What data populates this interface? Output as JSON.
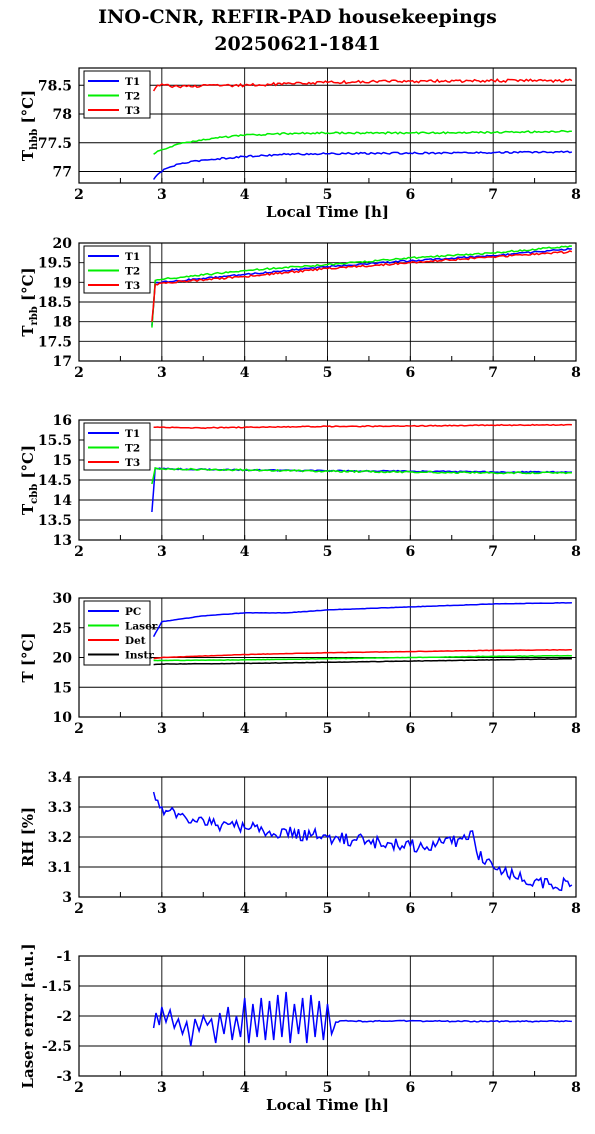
{
  "title": {
    "line1": "INO-CNR, REFIR-PAD housekeepings",
    "line2": "20250621-1841"
  },
  "colors": {
    "blue": "#0000ff",
    "green": "#00ee00",
    "red": "#ff0000",
    "black": "#000000"
  },
  "chart_data": [
    {
      "type": "line",
      "ylabel_main": "T",
      "ylabel_sub": "hbb",
      "ylabel_unit": "[°C]",
      "xlabel": "Local Time [h]",
      "xlim": [
        2,
        8
      ],
      "ylim": [
        76.8,
        78.8
      ],
      "xticks": [
        "2",
        "3",
        "4",
        "5",
        "6",
        "7",
        "8"
      ],
      "yticks": [
        {
          "v": 77,
          "label": "77"
        },
        {
          "v": 77.5,
          "label": "77.5"
        },
        {
          "v": 78,
          "label": "78"
        },
        {
          "v": 78.5,
          "label": "78.5"
        }
      ],
      "grid": true,
      "legend_position": "top-left",
      "series": [
        {
          "name": "T1",
          "color": "#0000ff",
          "noise": 0.015,
          "points": [
            [
              2.9,
              76.86
            ],
            [
              2.95,
              76.95
            ],
            [
              3.05,
              77.05
            ],
            [
              3.2,
              77.13
            ],
            [
              3.5,
              77.2
            ],
            [
              4.0,
              77.26
            ],
            [
              4.5,
              77.3
            ],
            [
              5.0,
              77.31
            ],
            [
              6.0,
              77.32
            ],
            [
              7.0,
              77.33
            ],
            [
              7.95,
              77.34
            ]
          ]
        },
        {
          "name": "T2",
          "color": "#00ee00",
          "noise": 0.015,
          "points": [
            [
              2.9,
              77.3
            ],
            [
              3.0,
              77.38
            ],
            [
              3.2,
              77.48
            ],
            [
              3.5,
              77.56
            ],
            [
              4.0,
              77.63
            ],
            [
              4.5,
              77.66
            ],
            [
              5.0,
              77.67
            ],
            [
              6.0,
              77.67
            ],
            [
              7.0,
              77.68
            ],
            [
              7.95,
              77.7
            ]
          ]
        },
        {
          "name": "T3",
          "color": "#ff0000",
          "noise": 0.025,
          "points": [
            [
              2.9,
              78.4
            ],
            [
              2.95,
              78.5
            ],
            [
              3.3,
              78.48
            ],
            [
              4.0,
              78.5
            ],
            [
              5.0,
              78.55
            ],
            [
              6.0,
              78.57
            ],
            [
              7.0,
              78.58
            ],
            [
              7.95,
              78.58
            ]
          ]
        }
      ]
    },
    {
      "type": "line",
      "ylabel_main": "T",
      "ylabel_sub": "rbb",
      "ylabel_unit": "[°C]",
      "xlabel": "",
      "xlim": [
        2,
        8
      ],
      "ylim": [
        17,
        20
      ],
      "xticks": [
        "2",
        "3",
        "4",
        "5",
        "6",
        "7",
        "8"
      ],
      "yticks": [
        {
          "v": 17,
          "label": "17"
        },
        {
          "v": 17.5,
          "label": "17.5"
        },
        {
          "v": 18,
          "label": "18"
        },
        {
          "v": 18.5,
          "label": "18.5"
        },
        {
          "v": 19,
          "label": "19"
        },
        {
          "v": 19.5,
          "label": "19.5"
        },
        {
          "v": 20,
          "label": "20"
        }
      ],
      "grid": true,
      "legend_position": "top-left",
      "series": [
        {
          "name": "T1",
          "color": "#0000ff",
          "noise": 0.02,
          "points": [
            [
              2.88,
              17.9
            ],
            [
              2.92,
              19.0
            ],
            [
              3.0,
              19.0
            ],
            [
              4.0,
              19.2
            ],
            [
              5.0,
              19.4
            ],
            [
              6.0,
              19.55
            ],
            [
              7.0,
              19.68
            ],
            [
              7.95,
              19.85
            ]
          ]
        },
        {
          "name": "T2",
          "color": "#00ee00",
          "noise": 0.02,
          "points": [
            [
              2.88,
              17.85
            ],
            [
              2.92,
              19.05
            ],
            [
              3.0,
              19.08
            ],
            [
              4.0,
              19.3
            ],
            [
              5.0,
              19.45
            ],
            [
              6.0,
              19.62
            ],
            [
              7.0,
              19.75
            ],
            [
              7.95,
              19.92
            ]
          ]
        },
        {
          "name": "T3",
          "color": "#ff0000",
          "noise": 0.025,
          "points": [
            [
              2.88,
              18.0
            ],
            [
              2.92,
              18.95
            ],
            [
              3.0,
              18.98
            ],
            [
              4.0,
              19.15
            ],
            [
              5.0,
              19.35
            ],
            [
              6.0,
              19.5
            ],
            [
              7.0,
              19.65
            ],
            [
              7.95,
              19.78
            ]
          ]
        }
      ]
    },
    {
      "type": "line",
      "ylabel_main": "T",
      "ylabel_sub": "cbb",
      "ylabel_unit": "[°C]",
      "xlabel": "",
      "xlim": [
        2,
        8
      ],
      "ylim": [
        13,
        16
      ],
      "xticks": [
        "2",
        "3",
        "4",
        "5",
        "6",
        "7",
        "8"
      ],
      "yticks": [
        {
          "v": 13,
          "label": "13"
        },
        {
          "v": 13.5,
          "label": "13.5"
        },
        {
          "v": 14,
          "label": "14"
        },
        {
          "v": 14.5,
          "label": "14.5"
        },
        {
          "v": 15,
          "label": "15"
        },
        {
          "v": 15.5,
          "label": "15.5"
        },
        {
          "v": 16,
          "label": "16"
        }
      ],
      "grid": true,
      "legend_position": "top-left",
      "series": [
        {
          "name": "T1",
          "color": "#0000ff",
          "noise": 0.015,
          "points": [
            [
              2.88,
              13.7
            ],
            [
              2.92,
              14.8
            ],
            [
              3.0,
              14.78
            ],
            [
              4.0,
              14.75
            ],
            [
              5.0,
              14.73
            ],
            [
              6.0,
              14.72
            ],
            [
              7.0,
              14.7
            ],
            [
              7.95,
              14.7
            ]
          ]
        },
        {
          "name": "T2",
          "color": "#00ee00",
          "noise": 0.02,
          "points": [
            [
              2.88,
              14.4
            ],
            [
              2.92,
              14.8
            ],
            [
              3.0,
              14.78
            ],
            [
              4.0,
              14.75
            ],
            [
              5.0,
              14.72
            ],
            [
              6.0,
              14.7
            ],
            [
              7.0,
              14.68
            ],
            [
              7.95,
              14.68
            ]
          ]
        },
        {
          "name": "T3",
          "color": "#ff0000",
          "noise": 0.012,
          "points": [
            [
              2.9,
              15.82
            ],
            [
              3.5,
              15.8
            ],
            [
              4.0,
              15.82
            ],
            [
              5.0,
              15.84
            ],
            [
              6.0,
              15.85
            ],
            [
              7.0,
              15.87
            ],
            [
              7.95,
              15.88
            ]
          ]
        }
      ]
    },
    {
      "type": "line",
      "ylabel_main": "T [°C]",
      "ylabel_sub": "",
      "ylabel_unit": "",
      "xlabel": "",
      "xlim": [
        2,
        8
      ],
      "ylim": [
        10,
        30
      ],
      "xticks": [
        "2",
        "3",
        "4",
        "5",
        "6",
        "7",
        "8"
      ],
      "yticks": [
        {
          "v": 10,
          "label": "10"
        },
        {
          "v": 15,
          "label": "15"
        },
        {
          "v": 20,
          "label": "20"
        },
        {
          "v": 25,
          "label": "25"
        },
        {
          "v": 30,
          "label": "30"
        }
      ],
      "grid": true,
      "legend_position": "top-left",
      "series": [
        {
          "name": "PC",
          "color": "#0000ff",
          "noise": 0.03,
          "points": [
            [
              2.9,
              23.5
            ],
            [
              3.0,
              26.0
            ],
            [
              3.5,
              27.0
            ],
            [
              4.0,
              27.5
            ],
            [
              4.5,
              27.5
            ],
            [
              5.0,
              28.0
            ],
            [
              6.0,
              28.5
            ],
            [
              7.0,
              29.0
            ],
            [
              7.95,
              29.2
            ]
          ]
        },
        {
          "name": "Laser",
          "color": "#00ee00",
          "noise": 0.03,
          "points": [
            [
              2.9,
              19.5
            ],
            [
              3.0,
              19.5
            ],
            [
              4.0,
              19.6
            ],
            [
              5.0,
              19.8
            ],
            [
              6.0,
              20.0
            ],
            [
              7.0,
              20.2
            ],
            [
              7.95,
              20.3
            ]
          ]
        },
        {
          "name": "Det",
          "color": "#ff0000",
          "noise": 0.03,
          "points": [
            [
              2.9,
              19.8
            ],
            [
              3.0,
              20.0
            ],
            [
              4.0,
              20.5
            ],
            [
              5.0,
              20.8
            ],
            [
              6.0,
              21.0
            ],
            [
              7.0,
              21.2
            ],
            [
              7.95,
              21.3
            ]
          ]
        },
        {
          "name": "Instr",
          "color": "#000000",
          "noise": 0.03,
          "points": [
            [
              2.9,
              18.8
            ],
            [
              3.0,
              18.9
            ],
            [
              4.0,
              19.0
            ],
            [
              5.0,
              19.2
            ],
            [
              6.0,
              19.4
            ],
            [
              7.0,
              19.6
            ],
            [
              7.95,
              19.8
            ]
          ]
        }
      ]
    },
    {
      "type": "line",
      "ylabel_main": "RH [%]",
      "ylabel_sub": "",
      "ylabel_unit": "",
      "xlabel": "",
      "xlim": [
        2,
        8
      ],
      "ylim": [
        3,
        3.4
      ],
      "xticks": [
        "2",
        "3",
        "4",
        "5",
        "6",
        "7",
        "8"
      ],
      "yticks": [
        {
          "v": 3,
          "label": "3"
        },
        {
          "v": 3.1,
          "label": "3.1"
        },
        {
          "v": 3.2,
          "label": "3.2"
        },
        {
          "v": 3.3,
          "label": "3.3"
        },
        {
          "v": 3.4,
          "label": "3.4"
        }
      ],
      "grid": true,
      "legend_position": "none",
      "series": [
        {
          "color": "#0000ff",
          "noise": 0.022,
          "points": [
            [
              2.9,
              3.35
            ],
            [
              3.0,
              3.3
            ],
            [
              3.3,
              3.26
            ],
            [
              4.0,
              3.23
            ],
            [
              5.0,
              3.2
            ],
            [
              6.0,
              3.17
            ],
            [
              6.5,
              3.18
            ],
            [
              6.75,
              3.22
            ],
            [
              6.8,
              3.15
            ],
            [
              7.0,
              3.1
            ],
            [
              7.3,
              3.06
            ],
            [
              7.95,
              3.04
            ]
          ]
        }
      ]
    },
    {
      "type": "line",
      "ylabel_main": "Laser error [a.u.]",
      "ylabel_sub": "",
      "ylabel_unit": "",
      "xlabel": "Local Time [h]",
      "xlim": [
        2,
        8
      ],
      "ylim": [
        -3,
        -1
      ],
      "xticks": [
        "2",
        "3",
        "4",
        "5",
        "6",
        "7",
        "8"
      ],
      "yticks": [
        {
          "v": -3,
          "label": "-3"
        },
        {
          "v": -2.5,
          "label": "-2.5"
        },
        {
          "v": -2,
          "label": "-2"
        },
        {
          "v": -1.5,
          "label": "-1.5"
        },
        {
          "v": -1,
          "label": "-1"
        }
      ],
      "grid": true,
      "legend_position": "none",
      "series": [
        {
          "color": "#0000ff",
          "noise": 0.01,
          "points": [
            [
              2.9,
              -2.2
            ],
            [
              2.93,
              -1.95
            ],
            [
              2.97,
              -2.15
            ],
            [
              3.0,
              -1.85
            ],
            [
              3.05,
              -2.1
            ],
            [
              3.1,
              -1.9
            ],
            [
              3.15,
              -2.2
            ],
            [
              3.2,
              -2.05
            ],
            [
              3.25,
              -2.3
            ],
            [
              3.3,
              -2.1
            ],
            [
              3.35,
              -2.5
            ],
            [
              3.4,
              -2.05
            ],
            [
              3.45,
              -2.25
            ],
            [
              3.5,
              -2.0
            ],
            [
              3.55,
              -2.15
            ],
            [
              3.6,
              -2.05
            ],
            [
              3.65,
              -2.45
            ],
            [
              3.7,
              -1.95
            ],
            [
              3.75,
              -2.3
            ],
            [
              3.8,
              -1.85
            ],
            [
              3.85,
              -2.4
            ],
            [
              3.9,
              -2.0
            ],
            [
              3.95,
              -2.35
            ],
            [
              4.0,
              -1.7
            ],
            [
              4.05,
              -2.45
            ],
            [
              4.1,
              -1.8
            ],
            [
              4.15,
              -2.35
            ],
            [
              4.2,
              -1.7
            ],
            [
              4.25,
              -2.4
            ],
            [
              4.3,
              -1.75
            ],
            [
              4.35,
              -2.4
            ],
            [
              4.4,
              -1.65
            ],
            [
              4.45,
              -2.35
            ],
            [
              4.5,
              -1.6
            ],
            [
              4.55,
              -2.45
            ],
            [
              4.6,
              -1.8
            ],
            [
              4.65,
              -2.3
            ],
            [
              4.7,
              -1.7
            ],
            [
              4.75,
              -2.45
            ],
            [
              4.8,
              -1.65
            ],
            [
              4.85,
              -2.35
            ],
            [
              4.9,
              -1.75
            ],
            [
              4.95,
              -2.4
            ],
            [
              5.0,
              -1.8
            ],
            [
              5.05,
              -2.3
            ],
            [
              5.1,
              -2.1
            ],
            [
              5.2,
              -2.08
            ],
            [
              5.5,
              -2.09
            ],
            [
              6.0,
              -2.08
            ],
            [
              6.5,
              -2.09
            ],
            [
              7.0,
              -2.09
            ],
            [
              7.5,
              -2.09
            ],
            [
              7.95,
              -2.09
            ]
          ]
        }
      ]
    }
  ]
}
